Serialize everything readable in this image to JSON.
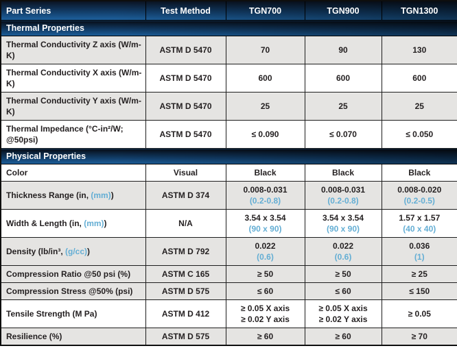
{
  "colors": {
    "header_gradient_top": "#0a111e",
    "header_gradient_bottom": "#1e63a1",
    "row_shade": "#e5e4e2",
    "accent_blue_text": "#64aed4",
    "body_text": "#231f20",
    "header_text": "#ffffff"
  },
  "header": {
    "part_series": "Part Series",
    "test_method": "Test Method",
    "columns": [
      "TGN700",
      "TGN900",
      "TGN1300"
    ]
  },
  "sections": [
    {
      "title": "Thermal Properties",
      "rows": [
        {
          "label": [
            {
              "t": "Thermal Conductivity Z axis (W/m-K)"
            }
          ],
          "method": "ASTM D 5470",
          "values": [
            [
              {
                "t": "70"
              }
            ],
            [
              {
                "t": "90"
              }
            ],
            [
              {
                "t": "130"
              }
            ]
          ],
          "shaded": true
        },
        {
          "label": [
            {
              "t": "Thermal Conductivity X axis (W/m-K)"
            }
          ],
          "method": "ASTM D 5470",
          "values": [
            [
              {
                "t": "600"
              }
            ],
            [
              {
                "t": "600"
              }
            ],
            [
              {
                "t": "600"
              }
            ]
          ],
          "shaded": false
        },
        {
          "label": [
            {
              "t": "Thermal Conductivity Y axis (W/m-K)"
            }
          ],
          "method": "ASTM D 5470",
          "values": [
            [
              {
                "t": "25"
              }
            ],
            [
              {
                "t": "25"
              }
            ],
            [
              {
                "t": "25"
              }
            ]
          ],
          "shaded": true
        },
        {
          "label": [
            {
              "t": "Thermal Impedance (°C-in²/W; @50psi)"
            }
          ],
          "method": "ASTM D 5470",
          "values": [
            [
              {
                "t": "≤ 0.090"
              }
            ],
            [
              {
                "t": "≤ 0.070"
              }
            ],
            [
              {
                "t": "≤ 0.050"
              }
            ]
          ],
          "shaded": false
        }
      ]
    },
    {
      "title": "Physical Properties",
      "rows": [
        {
          "label": [
            {
              "t": "Color"
            }
          ],
          "method": "Visual",
          "values": [
            [
              {
                "t": "Black"
              }
            ],
            [
              {
                "t": "Black"
              }
            ],
            [
              {
                "t": "Black"
              }
            ]
          ],
          "shaded": false
        },
        {
          "label": [
            {
              "t": "Thickness Range (in, "
            },
            {
              "t": "(mm)",
              "blue": true
            },
            {
              "t": ")"
            }
          ],
          "method": "ASTM D 374",
          "values": [
            [
              {
                "t": "0.008-0.031"
              },
              {
                "t": "(0.2-0.8)",
                "blue": true
              }
            ],
            [
              {
                "t": "0.008-0.031"
              },
              {
                "t": "(0.2-0.8)",
                "blue": true
              }
            ],
            [
              {
                "t": "0.008-0.020"
              },
              {
                "t": "(0.2-0.5)",
                "blue": true
              }
            ]
          ],
          "shaded": true
        },
        {
          "label": [
            {
              "t": "Width & Length (in, "
            },
            {
              "t": "(mm)",
              "blue": true
            },
            {
              "t": ")"
            }
          ],
          "method": "N/A",
          "values": [
            [
              {
                "t": "3.54 x 3.54"
              },
              {
                "t": "(90 x 90)",
                "blue": true
              }
            ],
            [
              {
                "t": "3.54 x 3.54"
              },
              {
                "t": "(90 x 90)",
                "blue": true
              }
            ],
            [
              {
                "t": "1.57 x 1.57"
              },
              {
                "t": "(40 x 40)",
                "blue": true
              }
            ]
          ],
          "shaded": false
        },
        {
          "label": [
            {
              "t": "Density (lb/in³, "
            },
            {
              "t": "(g/cc)",
              "blue": true
            },
            {
              "t": ")"
            }
          ],
          "method": "ASTM D 792",
          "values": [
            [
              {
                "t": "0.022"
              },
              {
                "t": "(0.6)",
                "blue": true
              }
            ],
            [
              {
                "t": "0.022"
              },
              {
                "t": "(0.6)",
                "blue": true
              }
            ],
            [
              {
                "t": "0.036"
              },
              {
                "t": "(1)",
                "blue": true
              }
            ]
          ],
          "shaded": true
        },
        {
          "label": [
            {
              "t": "Compression Ratio @50 psi (%)"
            }
          ],
          "method": "ASTM C 165",
          "values": [
            [
              {
                "t": "≥ 50"
              }
            ],
            [
              {
                "t": "≥ 50"
              }
            ],
            [
              {
                "t": "≥ 25"
              }
            ]
          ],
          "shaded": true
        },
        {
          "label": [
            {
              "t": "Compression Stress @50% (psi)"
            }
          ],
          "method": "ASTM D 575",
          "values": [
            [
              {
                "t": "≤ 60"
              }
            ],
            [
              {
                "t": "≤ 60"
              }
            ],
            [
              {
                "t": "≤ 150"
              }
            ]
          ],
          "shaded": true
        },
        {
          "label": [
            {
              "t": "Tensile Strength (M Pa)"
            }
          ],
          "method": "ASTM D 412",
          "values": [
            [
              {
                "t": "≥ 0.05 X axis"
              },
              {
                "t": "≥ 0.02 Y axis"
              }
            ],
            [
              {
                "t": "≥ 0.05 X axis"
              },
              {
                "t": "≥ 0.02 Y axis"
              }
            ],
            [
              {
                "t": "≥ 0.05"
              }
            ]
          ],
          "shaded": false
        },
        {
          "label": [
            {
              "t": "Resilience (%)"
            }
          ],
          "method": "ASTM D 575",
          "values": [
            [
              {
                "t": "≥ 60"
              }
            ],
            [
              {
                "t": "≥ 60"
              }
            ],
            [
              {
                "t": "≥ 70"
              }
            ]
          ],
          "shaded": true
        }
      ]
    }
  ]
}
